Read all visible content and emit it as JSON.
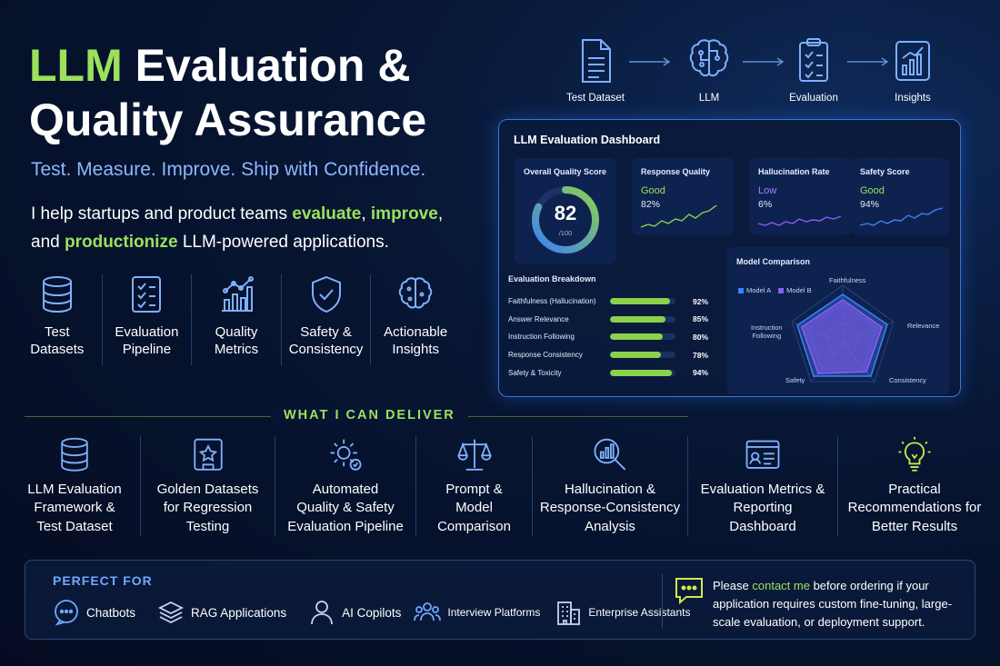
{
  "header": {
    "title_green": "LLM",
    "title_line1_rest": " Evaluation &",
    "title_line2": "Quality Assurance",
    "tagline": "Test. Measure. Improve. Ship with Confidence.",
    "intro_part1": "I help startups and product teams ",
    "intro_hl1": "evaluate",
    "intro_sep1": ", ",
    "intro_hl2": "improve",
    "intro_sep2": ",",
    "intro_part2": "and ",
    "intro_hl3": "productionize",
    "intro_part3": " LLM-powered applications."
  },
  "features": [
    {
      "icon": "database-icon",
      "label": "Test\nDatasets"
    },
    {
      "icon": "checklist-icon",
      "label": "Evaluation\nPipeline"
    },
    {
      "icon": "bar-chart-icon",
      "label": "Quality\nMetrics"
    },
    {
      "icon": "shield-check-icon",
      "label": "Safety &\nConsistency"
    },
    {
      "icon": "brain-icon",
      "label": "Actionable\nInsights"
    }
  ],
  "flow": [
    {
      "icon": "document-icon",
      "label": "Test Dataset"
    },
    {
      "icon": "brain-circuit-icon",
      "label": "LLM"
    },
    {
      "icon": "clipboard-check-icon",
      "label": "Evaluation"
    },
    {
      "icon": "chart-icon",
      "label": "Insights"
    }
  ],
  "dashboard": {
    "title": "LLM Evaluation Dashboard",
    "overall": {
      "title": "Overall Quality Score",
      "score": "82",
      "sub": "/100",
      "fraction": 0.82
    },
    "cards": [
      {
        "title": "Response Quality",
        "status": "Good",
        "status_color": "#9be15d",
        "percent": "82%",
        "line_color": "#8bd14e"
      },
      {
        "title": "Hallucination Rate",
        "status": "Low",
        "status_color": "#a67cff",
        "percent": "6%",
        "line_color": "#8b5cf6"
      },
      {
        "title": "Safety Score",
        "status": "Good",
        "status_color": "#9be15d",
        "percent": "94%",
        "line_color": "#3b82f6"
      }
    ],
    "breakdown": {
      "title": "Evaluation Breakdown",
      "rows": [
        {
          "label": "Faithfulness (Hallucination)",
          "value": "92%",
          "fraction": 0.92
        },
        {
          "label": "Answer Relevance",
          "value": "85%",
          "fraction": 0.85
        },
        {
          "label": "Instruction Following",
          "value": "80%",
          "fraction": 0.8
        },
        {
          "label": "Response Consistency",
          "value": "78%",
          "fraction": 0.78
        },
        {
          "label": "Safety & Toxicity",
          "value": "94%",
          "fraction": 0.94
        }
      ]
    },
    "radar": {
      "title": "Model Comparison",
      "legend": [
        {
          "name": "Model A",
          "color": "#3b82f6"
        },
        {
          "name": "Model B",
          "color": "#8b5cf6"
        }
      ],
      "axes": [
        "Faithfulness",
        "Relevance",
        "Consistency",
        "Safety",
        "Instruction\nFollowing"
      ]
    }
  },
  "section_title": "WHAT I CAN DELIVER",
  "deliverables": [
    {
      "icon": "database-icon",
      "label": "LLM Evaluation\nFramework &\nTest Dataset"
    },
    {
      "icon": "star-doc-icon",
      "label": "Golden Datasets\nfor Regression\nTesting"
    },
    {
      "icon": "gear-icon",
      "label": "Automated\nQuality & Safety\nEvaluation Pipeline"
    },
    {
      "icon": "scales-icon",
      "label": "Prompt &\nModel\nComparison"
    },
    {
      "icon": "magnifier-chart-icon",
      "label": "Hallucination &\nResponse-Consistency\nAnalysis"
    },
    {
      "icon": "report-icon",
      "label": "Evaluation Metrics &\nReporting\nDashboard"
    },
    {
      "icon": "lightbulb-icon",
      "label": "Practical\nRecommendations for\nBetter Results"
    }
  ],
  "perfect_for": {
    "title": "PERFECT FOR",
    "items": [
      {
        "icon": "chat-icon",
        "label": "Chatbots"
      },
      {
        "icon": "layers-icon",
        "label": "RAG Applications"
      },
      {
        "icon": "person-icon",
        "label": "AI Copilots"
      },
      {
        "icon": "people-icon",
        "label": "Interview Platforms"
      },
      {
        "icon": "building-icon",
        "label": "Enterprise Assistants"
      }
    ],
    "note_pre": "Please ",
    "note_link": "contact me",
    "note_post": " before ordering if your application requires custom fine-tuning, large-scale evaluation, or deployment support."
  },
  "colors": {
    "accent_green": "#9be15d",
    "accent_blue": "#6fa9ff",
    "background": "#071633"
  }
}
